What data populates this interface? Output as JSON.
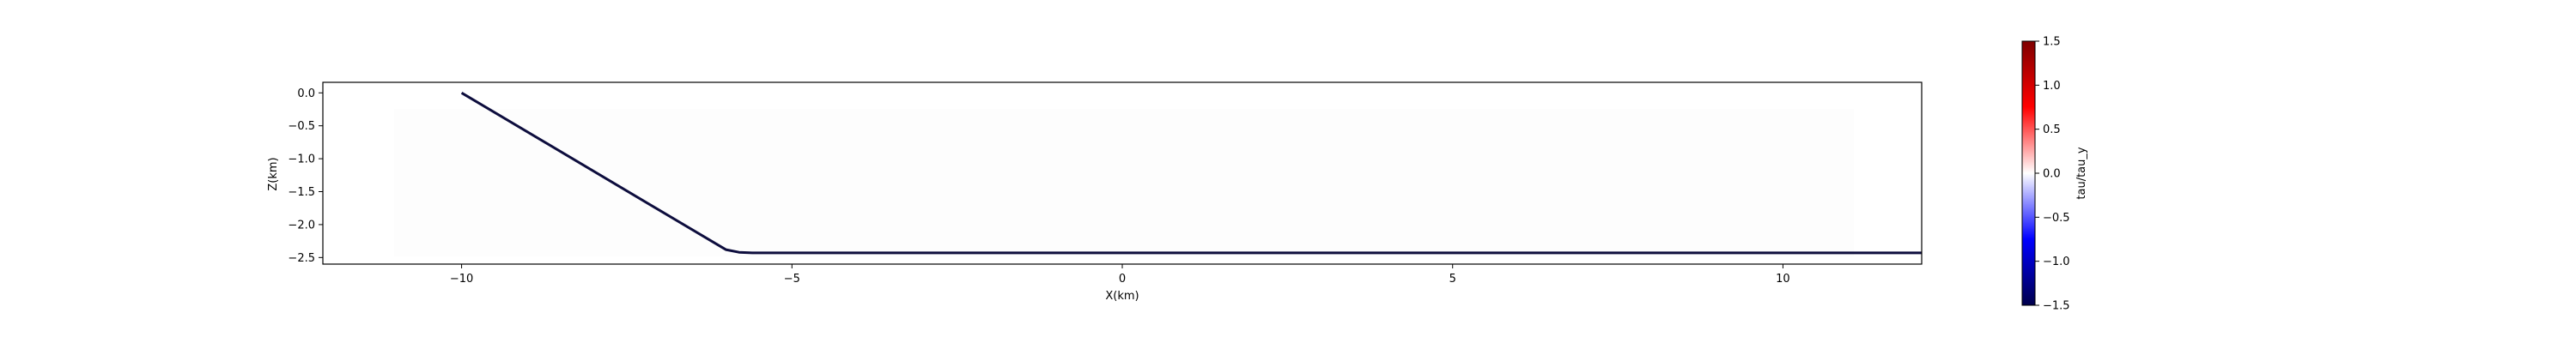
{
  "chart_data": {
    "type": "line",
    "title": "",
    "xlabel": "X(km)",
    "ylabel": "Z(km)",
    "xlim": [
      -12.1,
      12.1
    ],
    "ylim": [
      -2.6,
      0.16
    ],
    "grid": false,
    "x_ticks": [
      -10,
      -5,
      0,
      5,
      10
    ],
    "x_tick_labels": [
      "−10",
      "−5",
      "0",
      "5",
      "10"
    ],
    "y_ticks": [
      0.0,
      -0.5,
      -1.0,
      -1.5,
      -2.0,
      -2.5
    ],
    "y_tick_labels": [
      "0.0",
      "−0.5",
      "−1.0",
      "−1.5",
      "−2.0",
      "−2.5"
    ],
    "series": [
      {
        "color": "#0d0d3d",
        "x": [
          -10.0,
          -6.0,
          -5.8,
          -5.6,
          12.1
        ],
        "y": [
          0.0,
          -2.38,
          -2.42,
          -2.43,
          -2.43
        ]
      }
    ],
    "colorbar": {
      "label": "tau/tau_y",
      "range": [
        -1.5,
        1.5
      ],
      "ticks": [
        1.5,
        1.0,
        0.5,
        0.0,
        -0.5,
        -1.0,
        -1.5
      ],
      "tick_labels": [
        "1.5",
        "1.0",
        "0.5",
        "0.0",
        "−0.5",
        "−1.0",
        "−1.5"
      ],
      "colormap": "seismic",
      "colors": [
        "#00004c",
        "#0000ff",
        "#ffffff",
        "#ff0000",
        "#7f0000"
      ]
    }
  }
}
